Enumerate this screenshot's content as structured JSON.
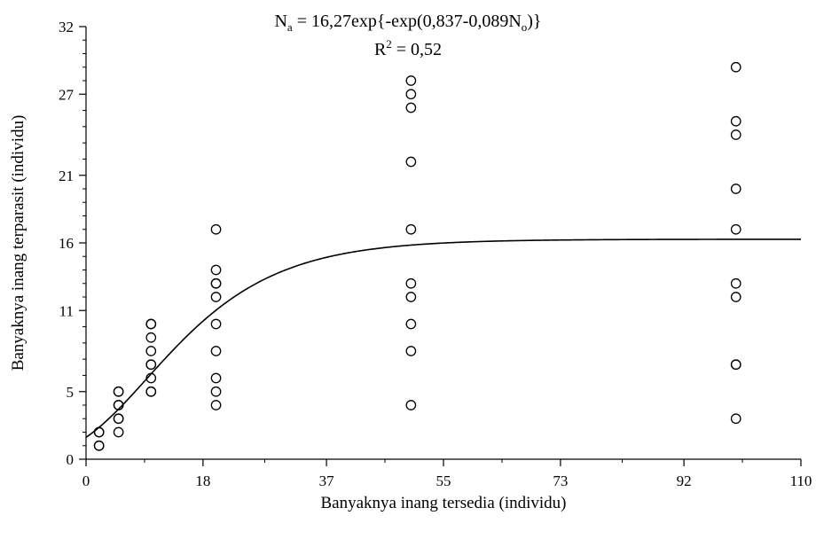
{
  "chart_data": {
    "type": "scatter",
    "title": "",
    "equation": {
      "prefix": "N",
      "sub1": "a",
      "mid": " = 16,27exp{-exp(0,837-0,089N",
      "sub2": "o",
      "suffix": ")}"
    },
    "r2": {
      "prefix": "R",
      "sup": "2",
      "value": " = 0,52"
    },
    "xlabel": "Banyaknya inang tersedia (individu)",
    "ylabel": "Banyaknya inang terparasit (individu)",
    "xlim": [
      0,
      110
    ],
    "ylim": [
      0,
      32
    ],
    "x_ticks": [
      0,
      18,
      37,
      55,
      73,
      92,
      110
    ],
    "x_tick_labels": [
      "0",
      "18",
      "37",
      "55",
      "73",
      "92",
      "110"
    ],
    "y_ticks": [
      0,
      5,
      11,
      16,
      21,
      27,
      32
    ],
    "y_tick_labels": [
      "0",
      "5",
      "11",
      "16",
      "21",
      "27",
      "32"
    ],
    "grid": false,
    "points": [
      {
        "x": 2,
        "y": 1
      },
      {
        "x": 2,
        "y": 1
      },
      {
        "x": 2,
        "y": 2
      },
      {
        "x": 2,
        "y": 2
      },
      {
        "x": 5,
        "y": 2
      },
      {
        "x": 5,
        "y": 3
      },
      {
        "x": 5,
        "y": 3
      },
      {
        "x": 5,
        "y": 4
      },
      {
        "x": 5,
        "y": 4
      },
      {
        "x": 5,
        "y": 5
      },
      {
        "x": 5,
        "y": 5
      },
      {
        "x": 10,
        "y": 5
      },
      {
        "x": 10,
        "y": 5
      },
      {
        "x": 10,
        "y": 6
      },
      {
        "x": 10,
        "y": 7
      },
      {
        "x": 10,
        "y": 7
      },
      {
        "x": 10,
        "y": 8
      },
      {
        "x": 10,
        "y": 9
      },
      {
        "x": 10,
        "y": 10
      },
      {
        "x": 10,
        "y": 10
      },
      {
        "x": 20,
        "y": 4
      },
      {
        "x": 20,
        "y": 5
      },
      {
        "x": 20,
        "y": 6
      },
      {
        "x": 20,
        "y": 8
      },
      {
        "x": 20,
        "y": 10
      },
      {
        "x": 20,
        "y": 12
      },
      {
        "x": 20,
        "y": 13
      },
      {
        "x": 20,
        "y": 13
      },
      {
        "x": 20,
        "y": 14
      },
      {
        "x": 20,
        "y": 17
      },
      {
        "x": 50,
        "y": 4
      },
      {
        "x": 50,
        "y": 8
      },
      {
        "x": 50,
        "y": 10
      },
      {
        "x": 50,
        "y": 12
      },
      {
        "x": 50,
        "y": 13
      },
      {
        "x": 50,
        "y": 17
      },
      {
        "x": 50,
        "y": 22
      },
      {
        "x": 50,
        "y": 26
      },
      {
        "x": 50,
        "y": 27
      },
      {
        "x": 50,
        "y": 28
      },
      {
        "x": 100,
        "y": 3
      },
      {
        "x": 100,
        "y": 7
      },
      {
        "x": 100,
        "y": 7
      },
      {
        "x": 100,
        "y": 12
      },
      {
        "x": 100,
        "y": 13
      },
      {
        "x": 100,
        "y": 17
      },
      {
        "x": 100,
        "y": 20
      },
      {
        "x": 100,
        "y": 24
      },
      {
        "x": 100,
        "y": 25
      },
      {
        "x": 100,
        "y": 29
      }
    ],
    "fit_curve": {
      "type": "gompertz",
      "a": 16.27,
      "b": 0.837,
      "c": 0.089
    },
    "colors": {
      "axis": "#000000",
      "marker_stroke": "#000000",
      "curve": "#000000"
    }
  }
}
